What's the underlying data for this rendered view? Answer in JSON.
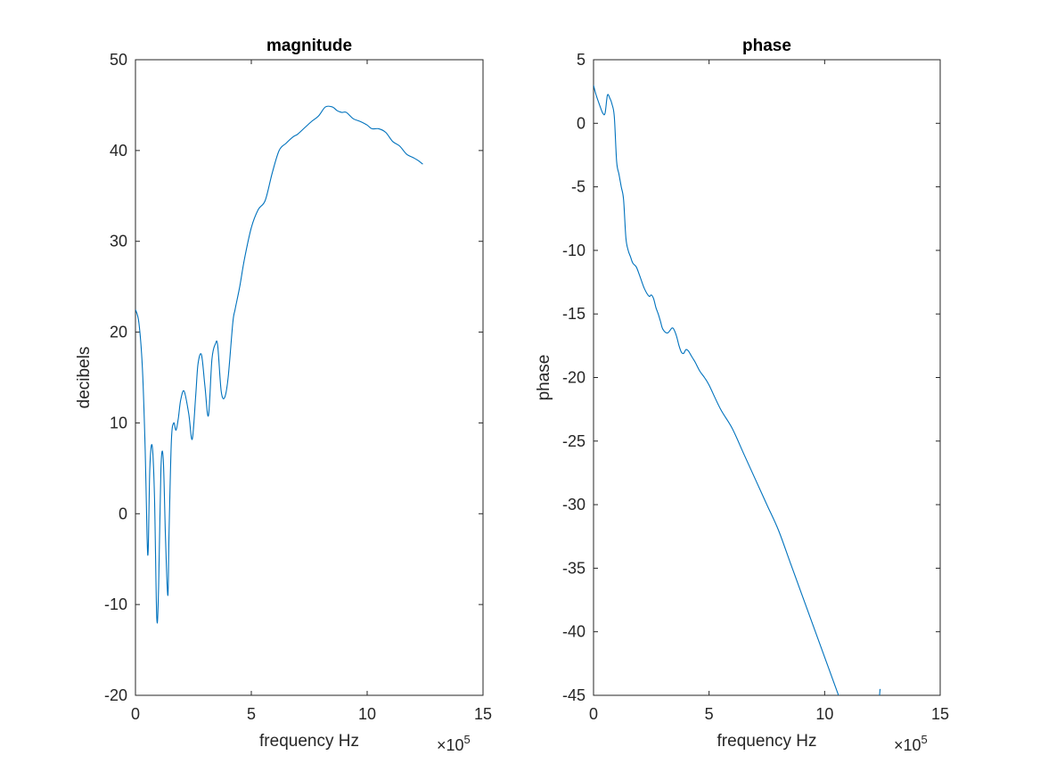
{
  "chart_data": [
    {
      "type": "line",
      "title": "magnitude",
      "xlabel": "frequency Hz",
      "ylabel": "decibels",
      "x_exponent_label": "×10",
      "x_exponent_power": "5",
      "xlim": [
        0,
        15
      ],
      "ylim": [
        -20,
        50
      ],
      "xticks": [
        0,
        5,
        10,
        15
      ],
      "yticks": [
        -20,
        -10,
        0,
        10,
        20,
        30,
        40,
        50
      ],
      "xtick_labels": [
        "0",
        "5",
        "10",
        "15"
      ],
      "ytick_labels": [
        "-20",
        "-10",
        "0",
        "10",
        "20",
        "30",
        "40",
        "50"
      ],
      "grid": false,
      "color": "#0072BD",
      "series": [
        {
          "x": [
            0,
            0.15,
            0.3,
            0.42,
            0.5,
            0.55,
            0.62,
            0.72,
            0.82,
            0.92,
            1.0,
            1.1,
            1.2,
            1.3,
            1.4,
            1.45,
            1.55,
            1.65,
            1.75,
            1.85,
            1.95,
            2.1,
            2.3,
            2.45,
            2.6,
            2.7,
            2.85,
            3.0,
            3.15,
            3.3,
            3.45,
            3.55,
            3.7,
            3.85,
            4.0,
            4.2,
            4.3,
            4.5,
            4.7,
            5.0,
            5.3,
            5.6,
            5.9,
            6.2,
            6.5,
            6.8,
            7.0,
            7.3,
            7.6,
            7.9,
            8.2,
            8.5,
            8.7,
            8.9,
            9.1,
            9.4,
            9.7,
            10.0,
            10.2,
            10.5,
            10.8,
            11.1,
            11.4,
            11.7,
            12.0,
            12.2,
            12.4
          ],
          "y": [
            22.5,
            21,
            16,
            7,
            -2.5,
            -4,
            5,
            7.5,
            2,
            -11.5,
            -8,
            5,
            6,
            -3,
            -9,
            -2,
            8,
            10,
            9.2,
            10.5,
            12.5,
            13.5,
            11,
            8.2,
            13,
            16.5,
            17.5,
            14,
            10.8,
            17,
            18.7,
            18.5,
            13.5,
            12.8,
            15,
            21,
            22.5,
            25,
            28,
            31.5,
            33.5,
            34.5,
            37.5,
            40,
            40.8,
            41.5,
            41.8,
            42.5,
            43.2,
            43.8,
            44.8,
            44.8,
            44.4,
            44.2,
            44.2,
            43.5,
            43.2,
            42.8,
            42.4,
            42.4,
            42,
            41,
            40.5,
            39.6,
            39.2,
            38.9,
            38.5
          ]
        }
      ]
    },
    {
      "type": "line",
      "title": "phase",
      "xlabel": "frequency Hz",
      "ylabel": "phase",
      "x_exponent_label": "×10",
      "x_exponent_power": "5",
      "xlim": [
        0,
        15
      ],
      "ylim": [
        -45,
        5
      ],
      "xticks": [
        0,
        5,
        10,
        15
      ],
      "yticks": [
        -45,
        -40,
        -35,
        -30,
        -25,
        -20,
        -15,
        -10,
        -5,
        0,
        5
      ],
      "xtick_labels": [
        "0",
        "5",
        "10",
        "15"
      ],
      "ytick_labels": [
        "-45",
        "-40",
        "-35",
        "-30",
        "-25",
        "-20",
        "-15",
        "-10",
        "-5",
        "0",
        "5"
      ],
      "grid": false,
      "color": "#0072BD",
      "series": [
        {
          "x": [
            0,
            0.1,
            0.25,
            0.4,
            0.5,
            0.6,
            0.7,
            0.8,
            0.9,
            1.0,
            1.1,
            1.2,
            1.3,
            1.4,
            1.5,
            1.6,
            1.7,
            1.85,
            2.0,
            2.2,
            2.4,
            2.5,
            2.6,
            2.7,
            2.8,
            2.9,
            3.0,
            3.2,
            3.4,
            3.5,
            3.6,
            3.7,
            3.8,
            3.9,
            4.0,
            4.1,
            4.2,
            4.3,
            4.4,
            4.6,
            4.8,
            5.0,
            5.5,
            6.0,
            6.5,
            7.0,
            7.5,
            8.0,
            8.5,
            9.0,
            9.5,
            10.0,
            10.5,
            11.0,
            11.5,
            12.0,
            12.4
          ],
          "y": [
            3,
            2.3,
            1.5,
            0.8,
            0.8,
            2.2,
            2,
            1.5,
            0.5,
            -3,
            -4,
            -5,
            -6,
            -9,
            -10,
            -10.5,
            -11,
            -11.3,
            -12,
            -13,
            -13.6,
            -13.5,
            -13.8,
            -14.5,
            -15,
            -15.6,
            -16.2,
            -16.5,
            -16.1,
            -16.3,
            -16.8,
            -17.5,
            -18,
            -18.1,
            -17.8,
            -17.9,
            -18.2,
            -18.5,
            -18.8,
            -19.5,
            -20,
            -20.6,
            -22.5,
            -24,
            -26,
            -28,
            -30,
            -32,
            -34.5,
            -37,
            -39.5,
            -42,
            -44.5,
            -47,
            -49.5,
            -52,
            -44.5
          ]
        }
      ]
    }
  ]
}
